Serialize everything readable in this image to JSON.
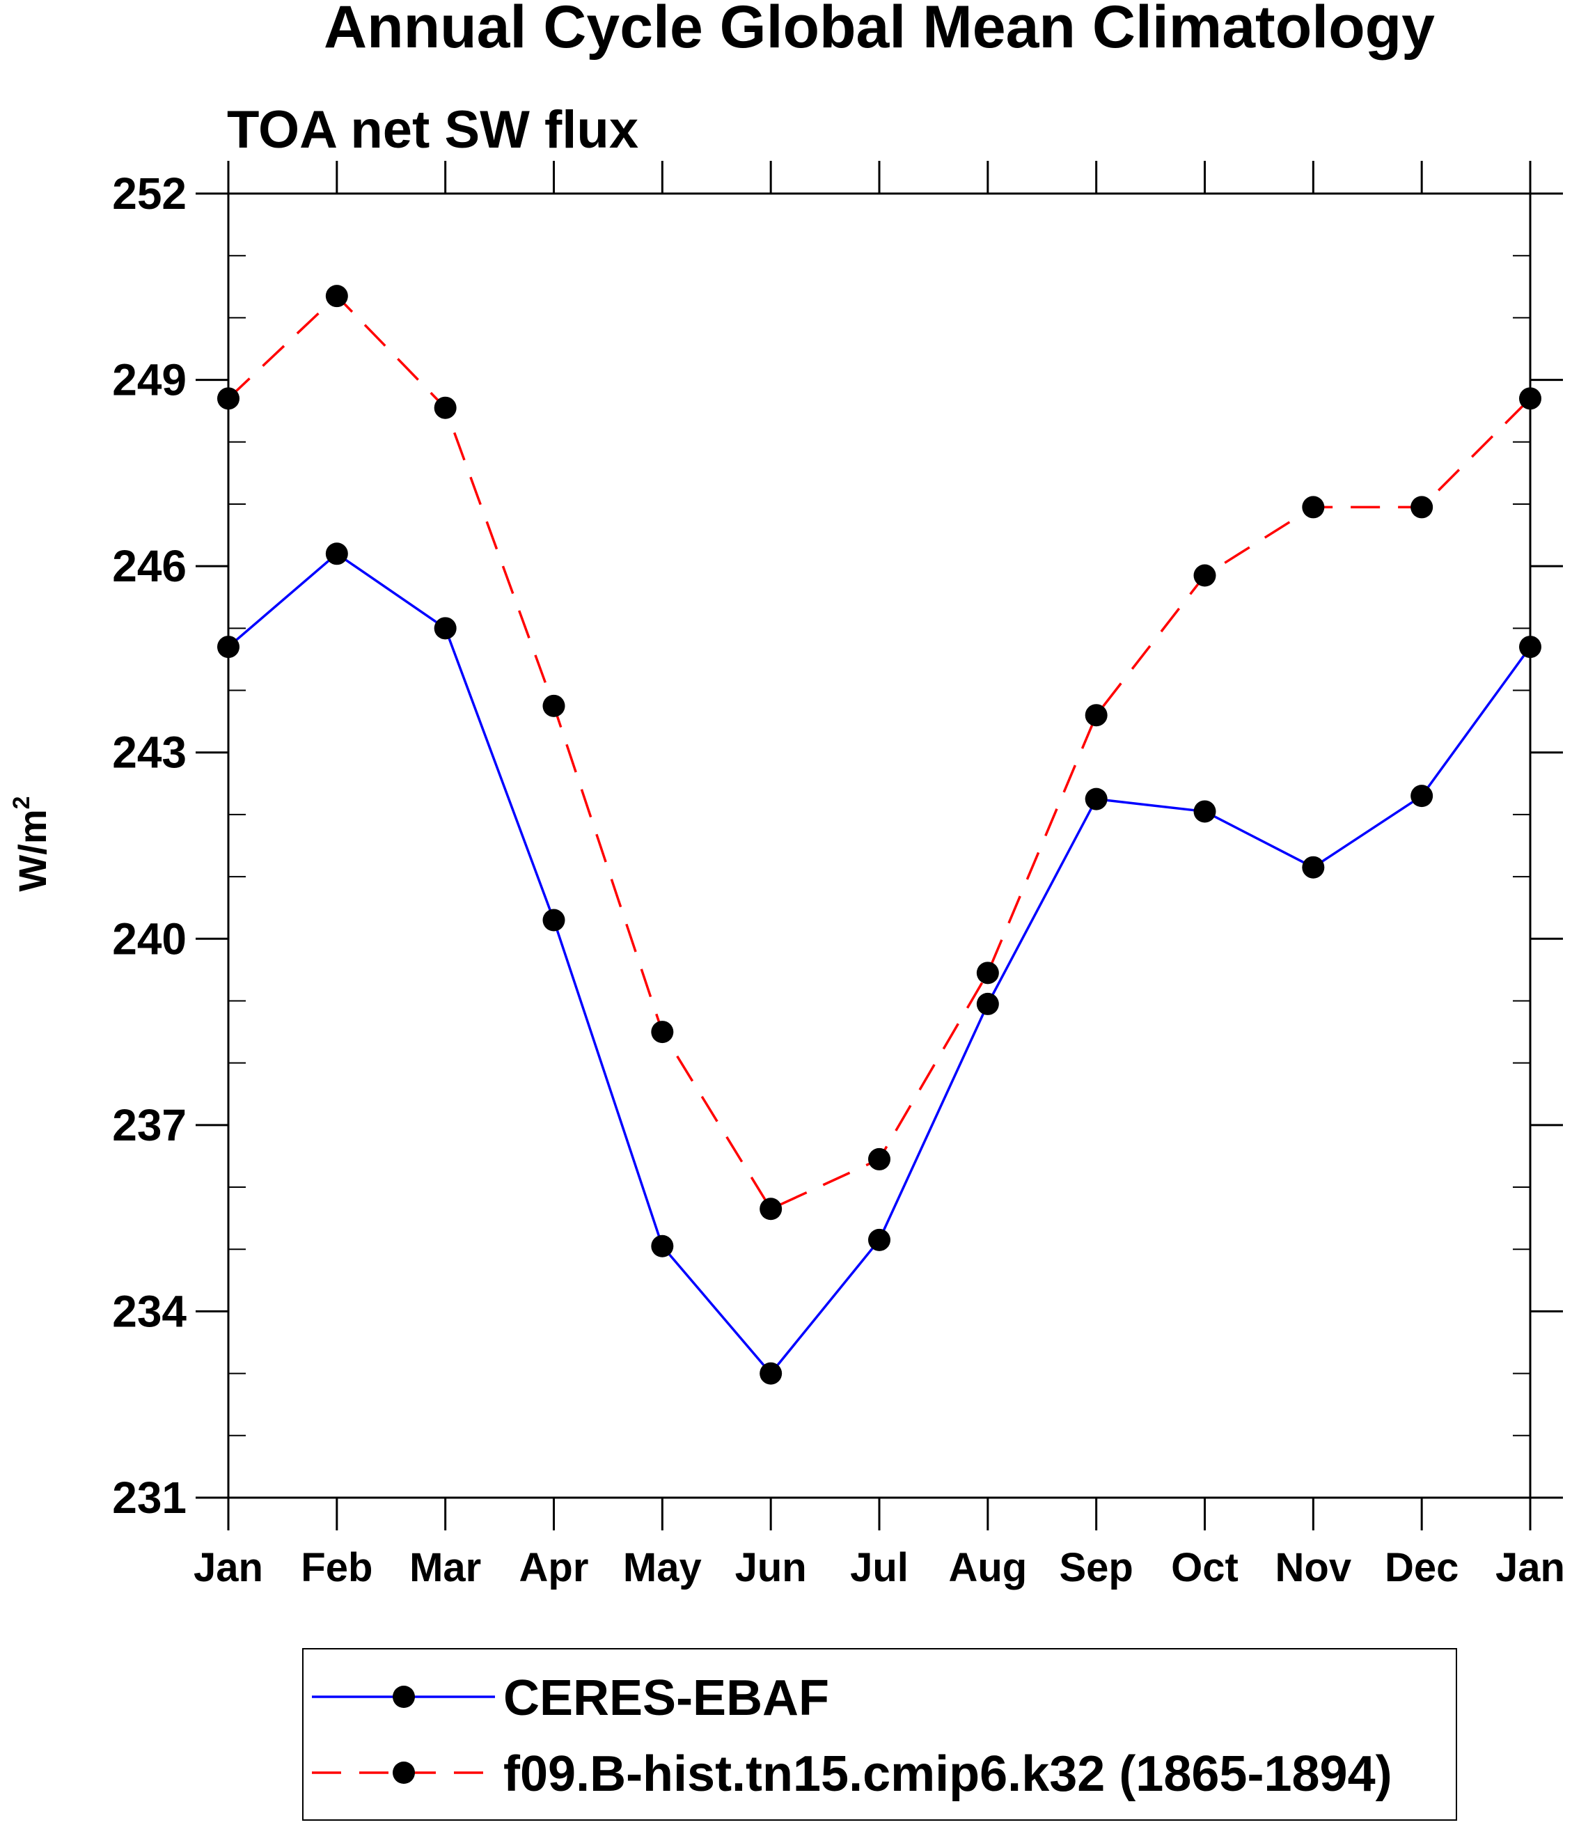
{
  "chart_data": {
    "type": "line",
    "title": "Annual Cycle Global Mean Climatology",
    "subtitle": "TOA net SW flux",
    "xlabel": "",
    "ylabel": "W/m",
    "ylabel_superscript": "2",
    "categories": [
      "Jan",
      "Feb",
      "Mar",
      "Apr",
      "May",
      "Jun",
      "Jul",
      "Aug",
      "Sep",
      "Oct",
      "Nov",
      "Dec",
      "Jan"
    ],
    "ylim": [
      231,
      252
    ],
    "yticks": [
      231,
      234,
      237,
      240,
      243,
      246,
      249,
      252
    ],
    "yminor_step": 1,
    "grid": false,
    "legend_position": "bottom",
    "series": [
      {
        "name": "CERES-EBAF",
        "color": "#0000ff",
        "dash": "solid",
        "values": [
          244.7,
          246.2,
          245.0,
          240.3,
          235.05,
          233.0,
          235.15,
          238.95,
          242.25,
          242.05,
          241.15,
          242.3,
          244.7
        ]
      },
      {
        "name": "f09.B-hist.tn15.cmip6.k32 (1865-1894)",
        "color": "#ff0000",
        "dash": "dashed",
        "values": [
          248.7,
          250.35,
          248.55,
          243.75,
          238.5,
          235.65,
          236.45,
          239.45,
          243.6,
          245.85,
          246.95,
          246.95,
          248.7
        ]
      }
    ]
  }
}
